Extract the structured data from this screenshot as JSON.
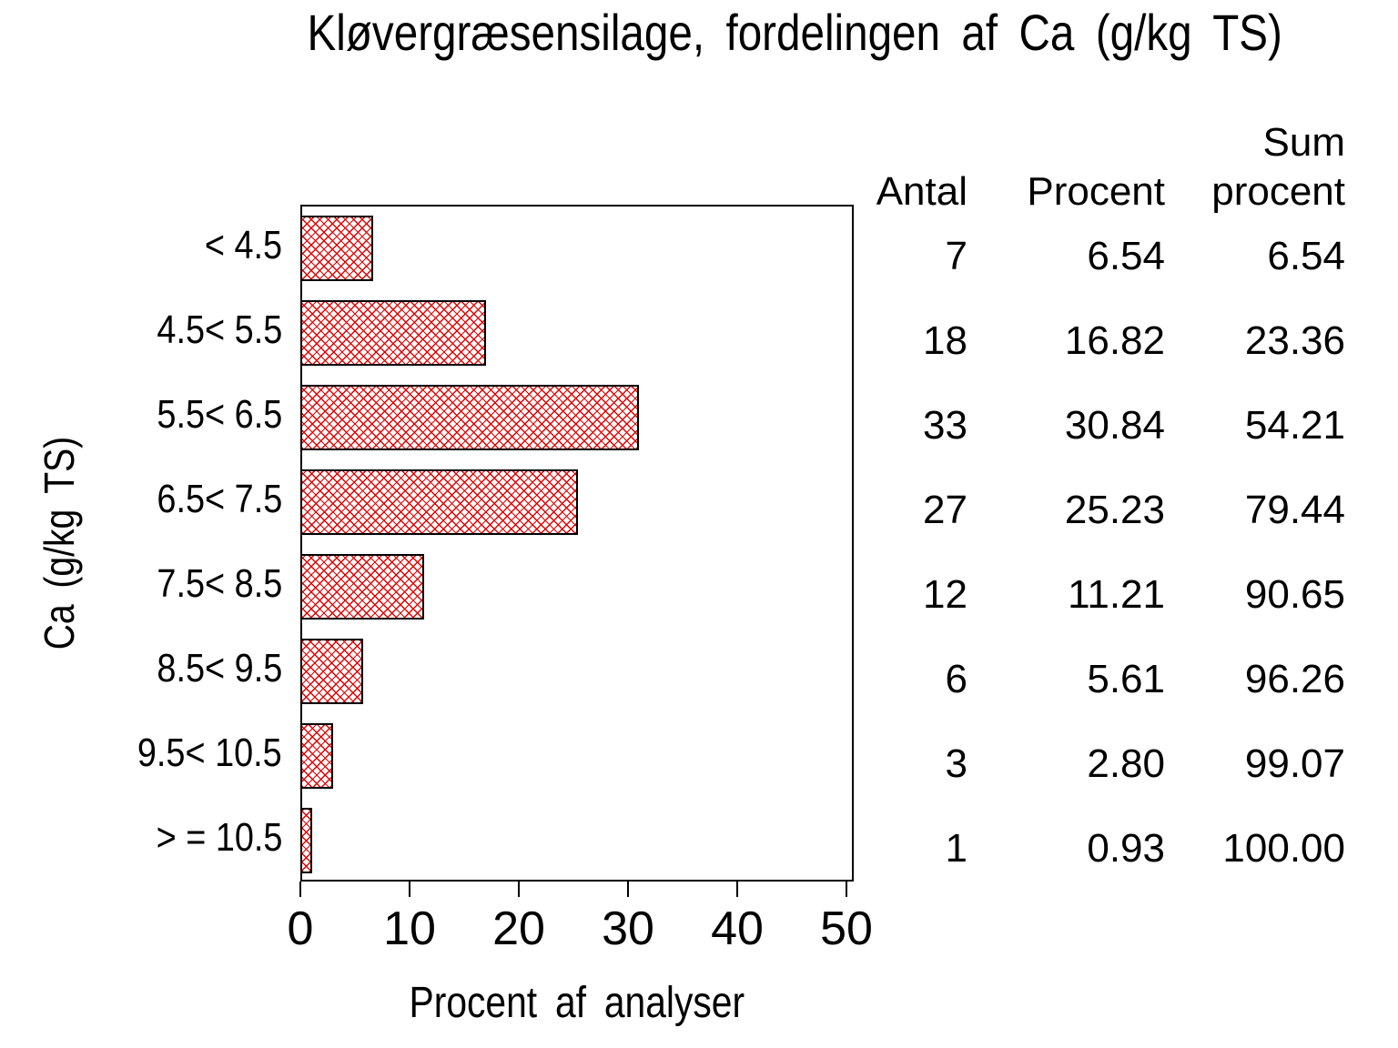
{
  "title": "Kløvergræsensilage, fordelingen af Ca (g/kg TS)",
  "colors": {
    "background": "#ffffff",
    "text": "#000000",
    "bar_hatch": "#e00000",
    "bar_border": "#000000",
    "frame": "#000000"
  },
  "chart_data": {
    "type": "bar",
    "orientation": "horizontal",
    "title": "Kløvergræsensilage, fordelingen af Ca (g/kg TS)",
    "xlabel": "Procent af analyser",
    "ylabel": "Ca (g/kg TS)",
    "categories": [
      "< 4.5",
      "4.5< 5.5",
      "5.5< 6.5",
      "6.5< 7.5",
      "7.5< 8.5",
      "8.5< 9.5",
      "9.5< 10.5",
      "> = 10.5"
    ],
    "values": [
      6.54,
      16.82,
      30.84,
      25.23,
      11.21,
      5.61,
      2.8,
      0.93
    ],
    "xlim": [
      0,
      50.7
    ],
    "xticks": [
      0,
      10,
      20,
      30,
      40,
      50
    ],
    "grid": false,
    "bar_style": "red-crosshatch",
    "legend": "none"
  },
  "table": {
    "headers": {
      "antal": "Antal",
      "procent": "Procent",
      "sum_line1": "Sum",
      "sum_line2": "procent"
    },
    "rows": [
      {
        "antal": "7",
        "procent": "6.54",
        "sum": "6.54"
      },
      {
        "antal": "18",
        "procent": "16.82",
        "sum": "23.36"
      },
      {
        "antal": "33",
        "procent": "30.84",
        "sum": "54.21"
      },
      {
        "antal": "27",
        "procent": "25.23",
        "sum": "79.44"
      },
      {
        "antal": "12",
        "procent": "11.21",
        "sum": "90.65"
      },
      {
        "antal": "6",
        "procent": "5.61",
        "sum": "96.26"
      },
      {
        "antal": "3",
        "procent": "2.80",
        "sum": "99.07"
      },
      {
        "antal": "1",
        "procent": "0.93",
        "sum": "100.00"
      }
    ]
  }
}
